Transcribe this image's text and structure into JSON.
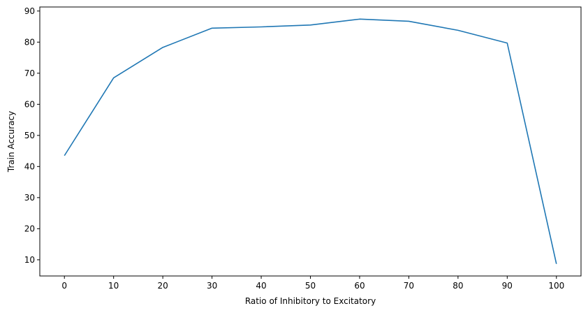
{
  "chart_data": {
    "type": "line",
    "title": "",
    "xlabel": "Ratio of Inhibitory to Excitatory",
    "ylabel": "Train Accuracy",
    "x": [
      0,
      10,
      20,
      30,
      40,
      50,
      60,
      70,
      80,
      90,
      100
    ],
    "series": [
      {
        "values": [
          43.5,
          68.5,
          78.3,
          84.5,
          84.9,
          85.5,
          87.4,
          86.7,
          83.8,
          79.7,
          8.7
        ],
        "color": "#1f77b4"
      }
    ],
    "xticks": [
      "0",
      "10",
      "20",
      "30",
      "40",
      "50",
      "60",
      "70",
      "80",
      "90",
      "100"
    ],
    "yticks": [
      "10",
      "20",
      "30",
      "40",
      "50",
      "60",
      "70",
      "80",
      "90"
    ],
    "xlim": [
      -5,
      105
    ],
    "ylim": [
      4.8,
      91.3
    ],
    "grid": false,
    "legend": "none"
  }
}
